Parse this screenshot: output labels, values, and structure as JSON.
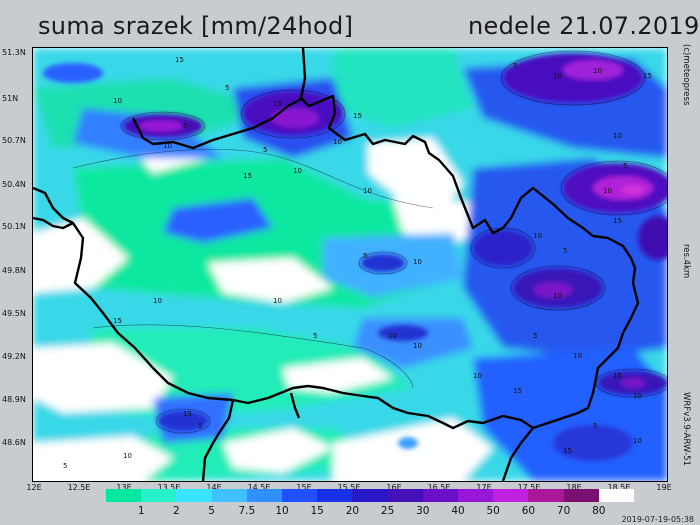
{
  "header": {
    "title": "suma srazek [mm/24hod]",
    "date": "nedele 21.07.2019"
  },
  "axes": {
    "lat_ticks": [
      "51.3N",
      "51N",
      "50.7N",
      "50.4N",
      "50.1N",
      "49.8N",
      "49.5N",
      "49.2N",
      "48.9N",
      "48.6N"
    ],
    "lon_ticks": [
      "12E",
      "12.5E",
      "13E",
      "13.5E",
      "14E",
      "14.5E",
      "15E",
      "15.5E",
      "16E",
      "16.5E",
      "17E",
      "17.5E",
      "18E",
      "18.5E",
      "19E"
    ]
  },
  "side_labels": {
    "credit": "(c)meteopress",
    "resolution": "res.4km",
    "model": "WRFv3.9-ARW-51"
  },
  "legend": {
    "levels": [
      "1",
      "2",
      "5",
      "7.5",
      "10",
      "15",
      "20",
      "25",
      "30",
      "40",
      "50",
      "60",
      "70",
      "80"
    ],
    "colors": [
      "#00e8a0",
      "#28f0c8",
      "#38e4ff",
      "#40c0ff",
      "#3090ff",
      "#2050ff",
      "#1830e8",
      "#2818c8",
      "#4410b8",
      "#6a10c8",
      "#9818d8",
      "#c020e0",
      "#a81898",
      "#7a1070",
      "#ffffff"
    ]
  },
  "timestamp": "2019-07-19-05:38",
  "contour_labels": [
    "15",
    "10",
    "5",
    "15",
    "10",
    "5",
    "10",
    "15",
    "5",
    "10",
    "15",
    "10",
    "5",
    "10",
    "10",
    "15",
    "10",
    "5",
    "10",
    "15",
    "10",
    "5",
    "10",
    "5",
    "10",
    "15",
    "10",
    "5",
    "10",
    "15",
    "10",
    "5",
    "10",
    "10",
    "15",
    "5",
    "10",
    "15",
    "10",
    "5",
    "10",
    "15",
    "10",
    "5"
  ]
}
